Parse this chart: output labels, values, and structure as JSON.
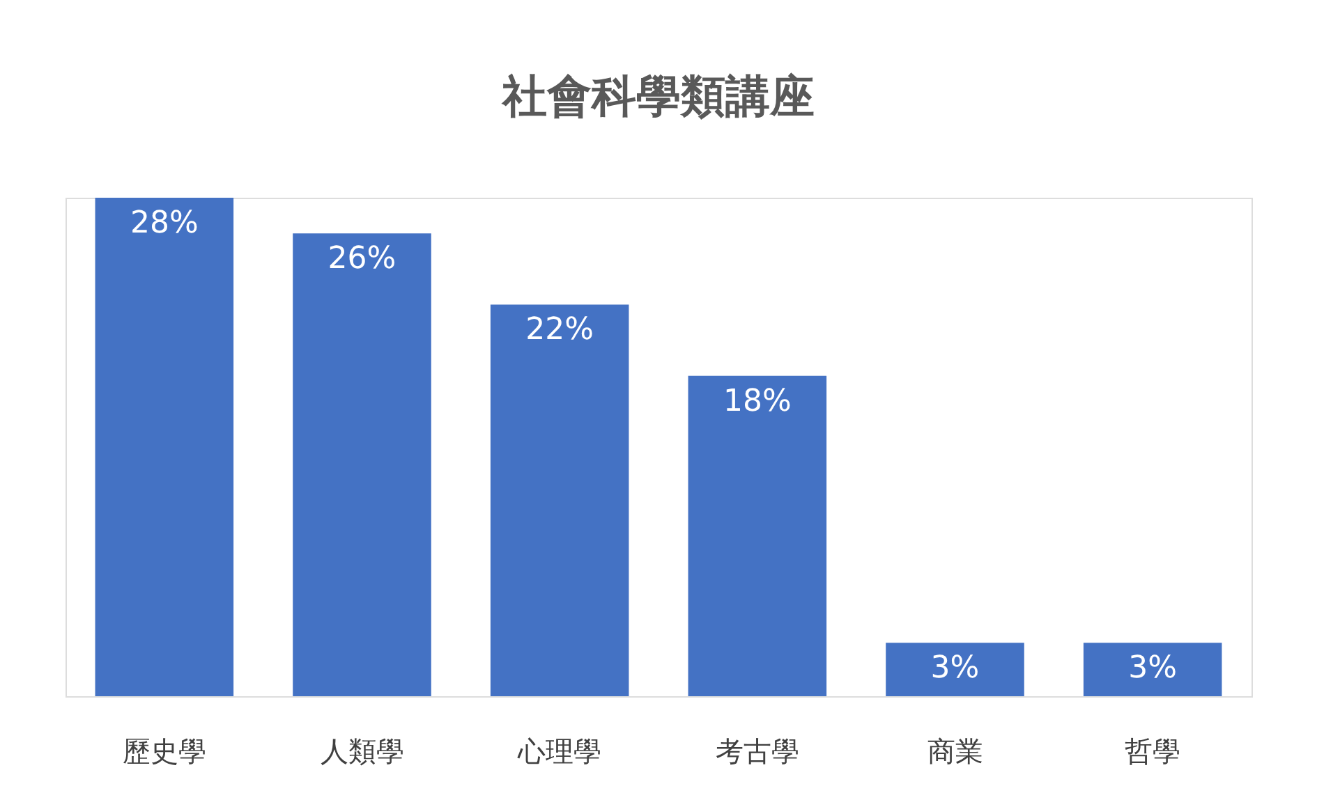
{
  "chart_data": {
    "type": "bar",
    "title": "社會科學類講座",
    "categories": [
      "歷史學",
      "人類學",
      "心理學",
      "考古學",
      "商業",
      "哲學"
    ],
    "values": [
      28,
      26,
      22,
      18,
      3,
      3
    ],
    "value_labels": [
      "28%",
      "26%",
      "22%",
      "18%",
      "3%",
      "3%"
    ],
    "color": "#4472c4"
  }
}
